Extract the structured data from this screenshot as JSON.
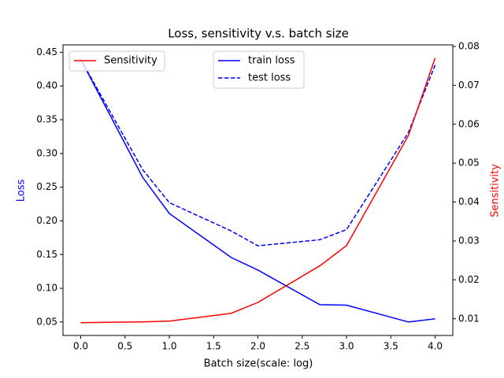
{
  "chart_data": {
    "type": "line",
    "title": "Loss, sensitivity v.s. batch size",
    "x_label": "Batch size(scale: log)",
    "y_label": "Loss",
    "y2_label": "Sensitivity",
    "y_label_color": "#0000ff",
    "y2_label_color": "#ff0000",
    "x": [
      0,
      0.699,
      1,
      1.699,
      2,
      2.699,
      3,
      3.699,
      4
    ],
    "series": [
      {
        "name": "train loss",
        "color": "#0000ff",
        "dash": "solid",
        "values": [
          0.4395,
          0.2646,
          0.2109,
          0.1456,
          0.127,
          0.0757,
          0.075,
          0.05,
          0.0547
        ]
      },
      {
        "name": "test loss",
        "color": "#0000ff",
        "dash": "dashed",
        "values": [
          0.4395,
          0.276,
          0.227,
          0.185,
          0.163,
          0.172,
          0.187,
          0.331,
          0.431
        ]
      },
      {
        "name": "Sensitivity",
        "color": "#ff0000",
        "dash": "solid",
        "axis": "y2",
        "values": [
          0.009,
          0.0092,
          0.0094,
          0.0114,
          0.0142,
          0.0236,
          0.0288,
          0.0571,
          0.077
        ]
      }
    ],
    "xlim": [
      -0.2,
      4.2
    ],
    "xticks": [
      {
        "value": 0,
        "label": "0.0"
      },
      0.5,
      {
        "value": 1,
        "label": "1.0"
      },
      1.5,
      {
        "value": 2,
        "label": "2.0"
      },
      2.5,
      {
        "value": 3,
        "label": "3.0"
      },
      3.5,
      {
        "value": 4,
        "label": "4.0"
      }
    ],
    "ylim": [
      0.03,
      0.461
    ],
    "yticks": [
      0.05,
      {
        "value": 0.1,
        "label": "0.10"
      },
      0.15,
      {
        "value": 0.2,
        "label": "0.20"
      },
      0.25,
      {
        "value": 0.3,
        "label": "0.30"
      },
      0.35,
      {
        "value": 0.4,
        "label": "0.40"
      },
      0.45
    ],
    "y2lim": [
      0.0057,
      0.0804
    ],
    "y2ticks": [
      0.01,
      0.02,
      0.03,
      0.04,
      0.05,
      0.06,
      0.07,
      0.08
    ],
    "legend": "upper center",
    "legend2": "upper left",
    "grid": false
  }
}
